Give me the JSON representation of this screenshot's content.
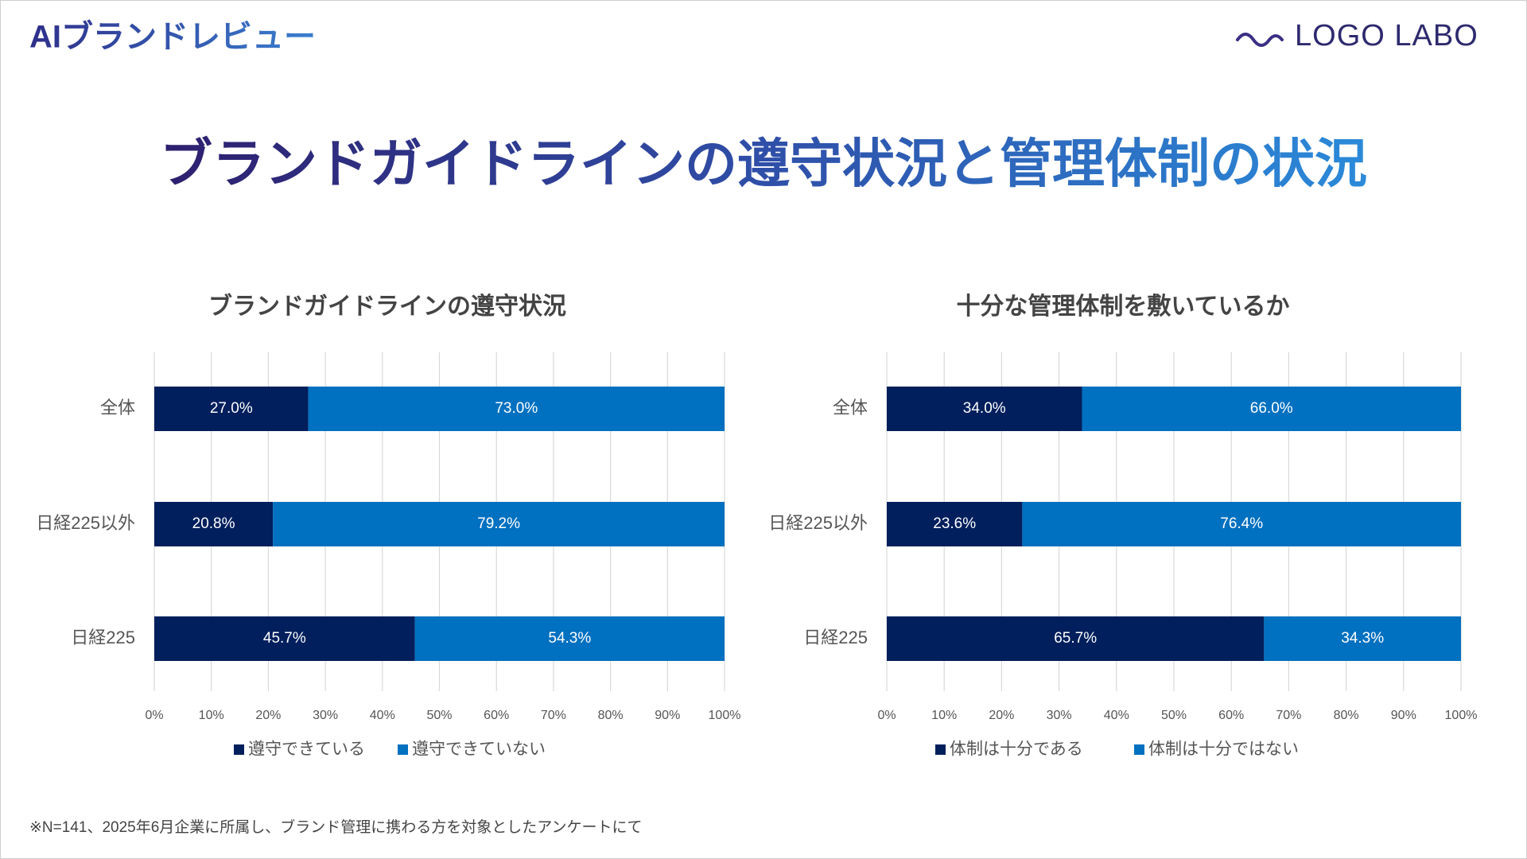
{
  "header": {
    "brand": "AIブランドレビュー",
    "logo": "LOGO LABO"
  },
  "title": "ブランドガイドラインの遵守状況と管理体制の状況",
  "footnote": "※N=141、2025年6月企業に所属し、ブランド管理に携わる方を対象としたアンケートにて",
  "chart_data": [
    {
      "type": "bar",
      "orientation": "horizontal",
      "stacked": true,
      "title": "ブランドガイドラインの遵守状況",
      "categories": [
        "全体",
        "日経225以外",
        "日経225"
      ],
      "series": [
        {
          "name": "遵守できている",
          "color": "#001f5c",
          "values": [
            27.0,
            20.8,
            45.7
          ],
          "value_labels": [
            "27.0%",
            "20.8%",
            "45.7%"
          ]
        },
        {
          "name": "遵守できていない",
          "color": "#0070c0",
          "values": [
            73.0,
            79.2,
            54.3
          ],
          "value_labels": [
            "73.0%",
            "79.2%",
            "54.3%"
          ]
        }
      ],
      "xlim": [
        0,
        100
      ],
      "xticks": [
        {
          "value": 0,
          "label": "0%"
        },
        {
          "value": 10,
          "label": "10%"
        },
        {
          "value": 20,
          "label": "20%"
        },
        {
          "value": 30,
          "label": "30%"
        },
        {
          "value": 40,
          "label": "40%"
        },
        {
          "value": 50,
          "label": "50%"
        },
        {
          "value": 60,
          "label": "60%"
        },
        {
          "value": 70,
          "label": "70%"
        },
        {
          "value": 80,
          "label": "80%"
        },
        {
          "value": 90,
          "label": "90%"
        },
        {
          "value": 100,
          "label": "100%"
        }
      ],
      "grid": true,
      "legend": "bottom"
    },
    {
      "type": "bar",
      "orientation": "horizontal",
      "stacked": true,
      "title": "十分な管理体制を敷いているか",
      "categories": [
        "全体",
        "日経225以外",
        "日経225"
      ],
      "series": [
        {
          "name": "体制は十分である",
          "color": "#001f5c",
          "values": [
            34.0,
            23.6,
            65.7
          ],
          "value_labels": [
            "34.0%",
            "23.6%",
            "65.7%"
          ]
        },
        {
          "name": "体制は十分ではない",
          "color": "#0070c0",
          "values": [
            66.0,
            76.4,
            34.3
          ],
          "value_labels": [
            "66.0%",
            "76.4%",
            "34.3%"
          ]
        }
      ],
      "xlim": [
        0,
        100
      ],
      "xticks": [
        {
          "value": 0,
          "label": "0%"
        },
        {
          "value": 10,
          "label": "10%"
        },
        {
          "value": 20,
          "label": "20%"
        },
        {
          "value": 30,
          "label": "30%"
        },
        {
          "value": 40,
          "label": "40%"
        },
        {
          "value": 50,
          "label": "50%"
        },
        {
          "value": 60,
          "label": "60%"
        },
        {
          "value": 70,
          "label": "70%"
        },
        {
          "value": 80,
          "label": "80%"
        },
        {
          "value": 90,
          "label": "90%"
        },
        {
          "value": 100,
          "label": "100%"
        }
      ],
      "grid": true,
      "legend": "bottom"
    }
  ]
}
